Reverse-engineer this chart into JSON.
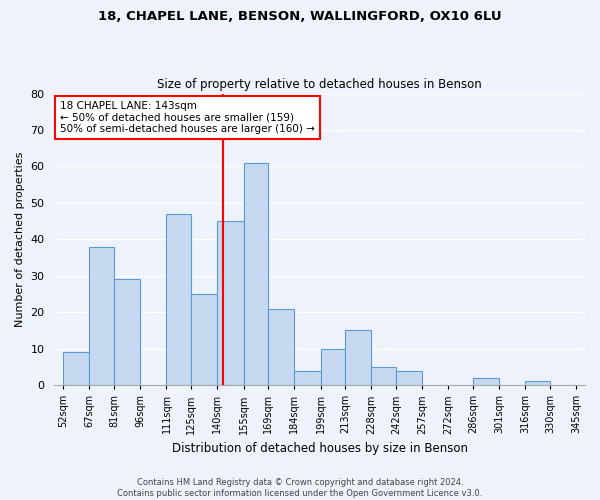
{
  "title1": "18, CHAPEL LANE, BENSON, WALLINGFORD, OX10 6LU",
  "title2": "Size of property relative to detached houses in Benson",
  "xlabel": "Distribution of detached houses by size in Benson",
  "ylabel": "Number of detached properties",
  "bins": [
    52,
    67,
    81,
    96,
    111,
    125,
    140,
    155,
    169,
    184,
    199,
    213,
    228,
    242,
    257,
    272,
    286,
    301,
    316,
    330,
    345
  ],
  "counts": [
    9,
    38,
    29,
    0,
    47,
    25,
    45,
    61,
    21,
    4,
    10,
    15,
    5,
    4,
    0,
    0,
    2,
    0,
    1,
    0
  ],
  "bar_color": "#c6d9f0",
  "bar_edge_color": "#5b9bd5",
  "vline_x": 143,
  "vline_color": "red",
  "ylim": [
    0,
    80
  ],
  "yticks": [
    0,
    10,
    20,
    30,
    40,
    50,
    60,
    70,
    80
  ],
  "bin_labels": [
    "52sqm",
    "67sqm",
    "81sqm",
    "96sqm",
    "111sqm",
    "125sqm",
    "140sqm",
    "155sqm",
    "169sqm",
    "184sqm",
    "199sqm",
    "213sqm",
    "228sqm",
    "242sqm",
    "257sqm",
    "272sqm",
    "286sqm",
    "301sqm",
    "316sqm",
    "330sqm",
    "345sqm"
  ],
  "annotation_title": "18 CHAPEL LANE: 143sqm",
  "annotation_line1": "← 50% of detached houses are smaller (159)",
  "annotation_line2": "50% of semi-detached houses are larger (160) →",
  "footnote1": "Contains HM Land Registry data © Crown copyright and database right 2024.",
  "footnote2": "Contains public sector information licensed under the Open Government Licence v3.0.",
  "background_color": "#eef2fa",
  "grid_color": "white"
}
